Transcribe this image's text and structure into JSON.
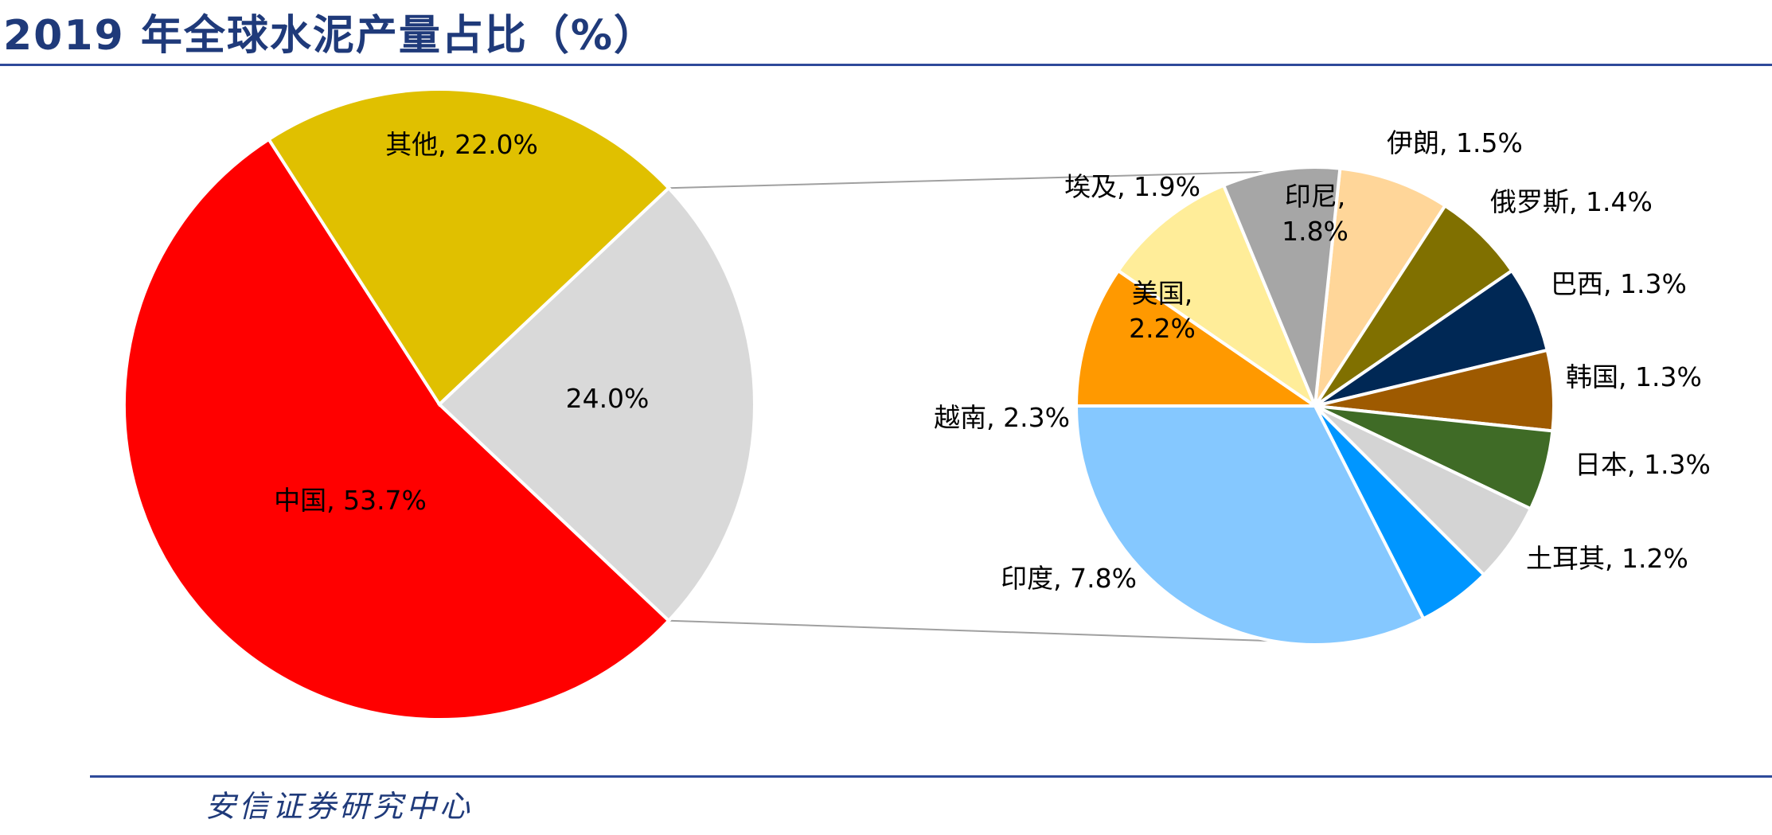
{
  "title": "2019 年全球水泥产量占比（%）",
  "footer": "安信证券研究中心",
  "chart_data": {
    "type": "pie",
    "main_pie": {
      "slices": [
        {
          "label": "中国",
          "value": 53.7,
          "text": "中国, 53.7%",
          "color": "#ff0000"
        },
        {
          "label": "其他",
          "value": 22.0,
          "text": "其他, 22.0%",
          "color": "#e0c000"
        },
        {
          "label": "",
          "value": 24.0,
          "text": "24.0%",
          "color": "#d9d9d9"
        }
      ]
    },
    "sub_pie": {
      "slices": [
        {
          "label": "印尼",
          "value": 1.8,
          "text": [
            "印尼,",
            "1.8%"
          ],
          "color": "#ffd699"
        },
        {
          "label": "伊朗",
          "value": 1.5,
          "text": [
            "伊朗, 1.5%"
          ],
          "color": "#807000"
        },
        {
          "label": "俄罗斯",
          "value": 1.4,
          "text": [
            "俄罗斯, 1.4%"
          ],
          "color": "#002855"
        },
        {
          "label": "巴西",
          "value": 1.3,
          "text": [
            "巴西, 1.3%"
          ],
          "color": "#9e5a00"
        },
        {
          "label": "韩国",
          "value": 1.3,
          "text": [
            "韩国, 1.3%"
          ],
          "color": "#3f6b26"
        },
        {
          "label": "日本",
          "value": 1.3,
          "text": [
            "日本, 1.3%"
          ],
          "color": "#d4d4d4"
        },
        {
          "label": "土耳其",
          "value": 1.2,
          "text": [
            "土耳其, 1.2%"
          ],
          "color": "#0096ff"
        },
        {
          "label": "印度",
          "value": 7.8,
          "text": [
            "印度, 7.8%"
          ],
          "color": "#85c8ff"
        },
        {
          "label": "越南",
          "value": 2.3,
          "text": [
            "越南, 2.3%"
          ],
          "color": "#ff9900"
        },
        {
          "label": "美国",
          "value": 2.2,
          "text": [
            "美国,",
            "2.2%"
          ],
          "color": "#ffed99"
        },
        {
          "label": "埃及",
          "value": 1.9,
          "text": [
            "埃及, 1.9%"
          ],
          "color": "#a6a6a6"
        }
      ]
    },
    "connector_color": "#a0a0a0"
  }
}
